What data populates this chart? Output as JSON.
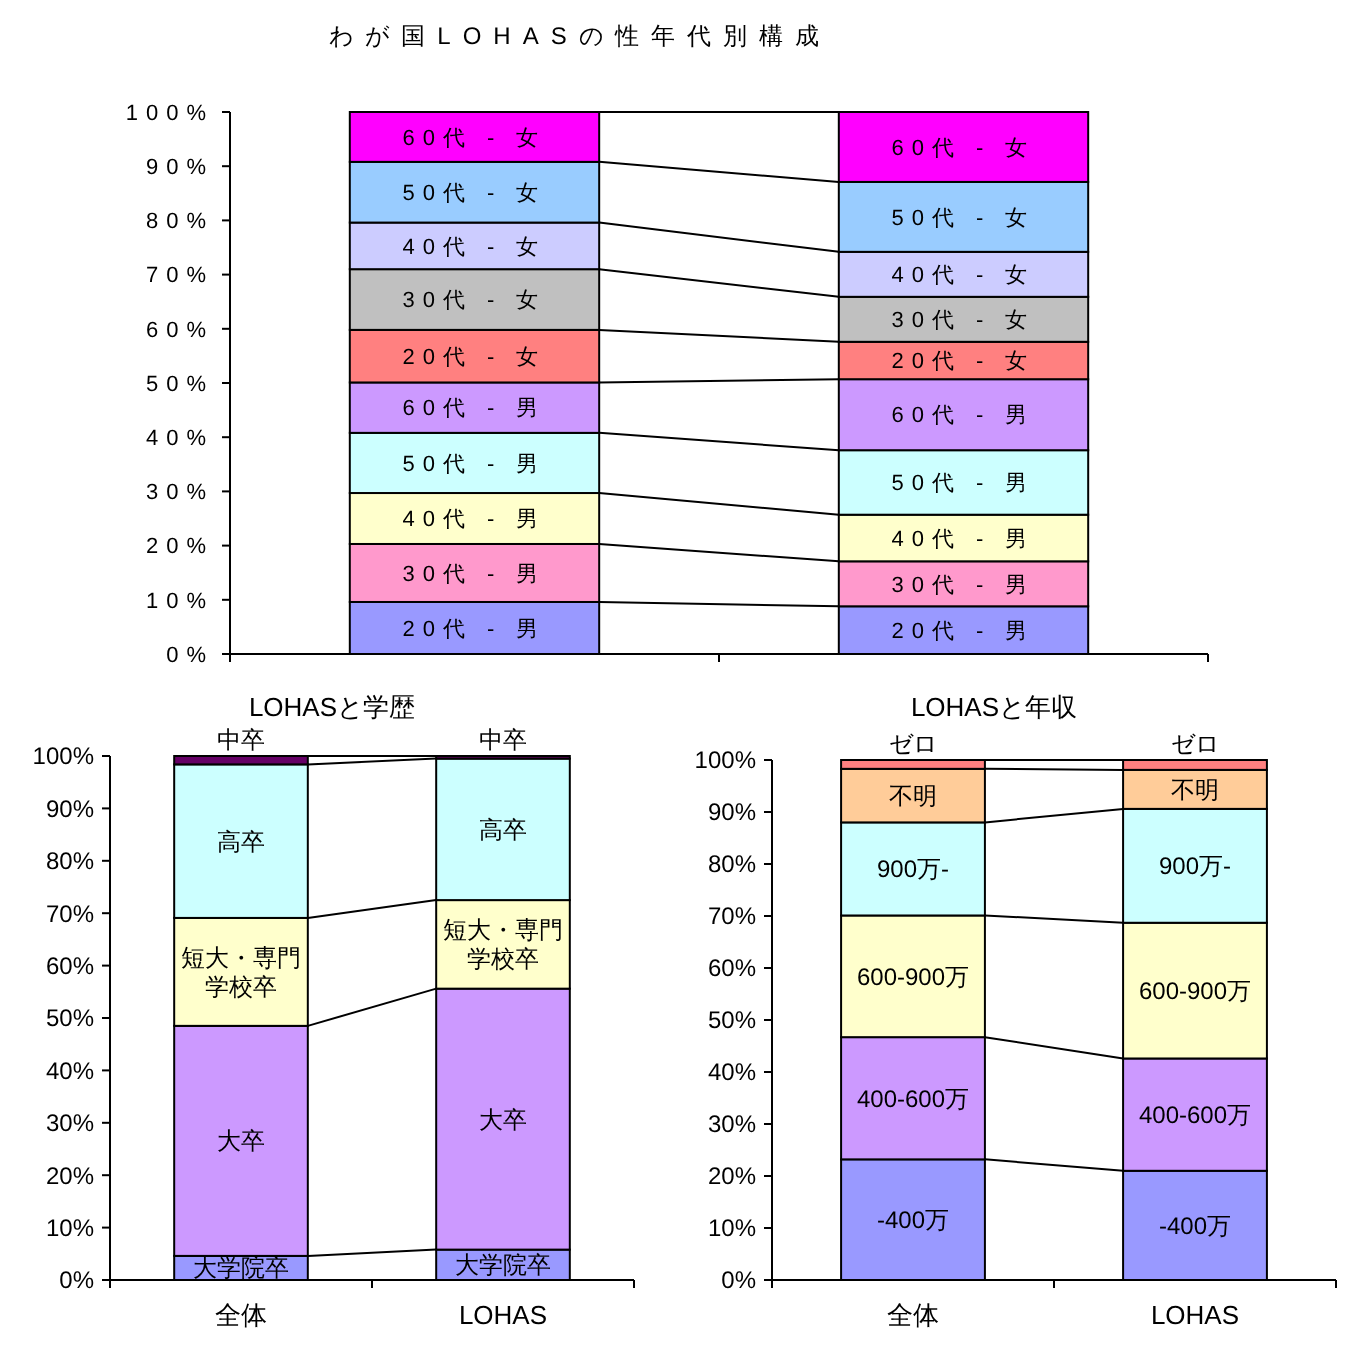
{
  "chart_data": [
    {
      "type": "bar",
      "title": "わが国LOHASの性年代別構成",
      "stacked": true,
      "categories": [
        null,
        null
      ],
      "ylim": [
        0,
        100
      ],
      "yticks": [
        {
          "value": 0,
          "label": "0%"
        },
        {
          "value": 10,
          "label": "10%"
        },
        {
          "value": 20,
          "label": "20%"
        },
        {
          "value": 30,
          "label": "30%"
        },
        {
          "value": 40,
          "label": "40%"
        },
        {
          "value": 50,
          "label": "50%"
        },
        {
          "value": 60,
          "label": "60%"
        },
        {
          "value": 70,
          "label": "70%"
        },
        {
          "value": 80,
          "label": "80%"
        },
        {
          "value": 90,
          "label": "90%"
        },
        {
          "value": 100,
          "label": "100%"
        }
      ],
      "tick_labels": "y",
      "legend": false,
      "grid": false,
      "series": [
        {
          "name": "20代 - 男",
          "color": "#9999ff",
          "values": [
            9.6,
            8.8
          ]
        },
        {
          "name": "30代 - 男",
          "color": "#ff99cc",
          "values": [
            10.7,
            8.3
          ]
        },
        {
          "name": "40代 - 男",
          "color": "#ffffcc",
          "values": [
            9.4,
            8.6
          ]
        },
        {
          "name": "50代 - 男",
          "color": "#ccffff",
          "values": [
            11.1,
            11.9
          ]
        },
        {
          "name": "60代 - 男",
          "color": "#cc99ff",
          "values": [
            9.3,
            13.1
          ]
        },
        {
          "name": "20代 - 女",
          "color": "#ff8080",
          "values": [
            9.7,
            6.9
          ]
        },
        {
          "name": "30代 - 女",
          "color": "#c0c0c0",
          "values": [
            11.2,
            8.3
          ]
        },
        {
          "name": "40代 - 女",
          "color": "#ccccff",
          "values": [
            8.6,
            8.3
          ]
        },
        {
          "name": "50代 - 女",
          "color": "#99ccff",
          "values": [
            11.2,
            12.9
          ]
        },
        {
          "name": "60代 - 女",
          "color": "#ff00ff",
          "values": [
            9.2,
            12.9
          ]
        }
      ]
    },
    {
      "type": "bar",
      "title": "LOHASと学歴",
      "stacked": true,
      "categories": [
        "全体",
        "LOHAS"
      ],
      "ylim": [
        0,
        100
      ],
      "yticks": [
        {
          "value": 0,
          "label": "0%"
        },
        {
          "value": 10,
          "label": "10%"
        },
        {
          "value": 20,
          "label": "20%"
        },
        {
          "value": 30,
          "label": "30%"
        },
        {
          "value": 40,
          "label": "40%"
        },
        {
          "value": 50,
          "label": "50%"
        },
        {
          "value": 60,
          "label": "60%"
        },
        {
          "value": 70,
          "label": "70%"
        },
        {
          "value": 80,
          "label": "80%"
        },
        {
          "value": 90,
          "label": "90%"
        },
        {
          "value": 100,
          "label": "100%"
        }
      ],
      "legend": false,
      "grid": false,
      "series": [
        {
          "name": "大学院卒",
          "color": "#9999ff",
          "values": [
            4.6,
            5.8
          ]
        },
        {
          "name": "大卒",
          "color": "#cc99ff",
          "values": [
            43.9,
            49.8
          ]
        },
        {
          "name": "短大・専門学校卒",
          "color": "#ffffcc",
          "values": [
            20.6,
            16.9
          ]
        },
        {
          "name": "高卒",
          "color": "#ccffff",
          "values": [
            29.3,
            27.0
          ]
        },
        {
          "name": "中卒",
          "color": "#660066",
          "values": [
            1.6,
            0.5
          ]
        }
      ]
    },
    {
      "type": "bar",
      "title": "LOHASと年収",
      "stacked": true,
      "categories": [
        "全体",
        "LOHAS"
      ],
      "ylim": [
        0,
        100
      ],
      "yticks": [
        {
          "value": 0,
          "label": "0%"
        },
        {
          "value": 10,
          "label": "10%"
        },
        {
          "value": 20,
          "label": "20%"
        },
        {
          "value": 30,
          "label": "30%"
        },
        {
          "value": 40,
          "label": "40%"
        },
        {
          "value": 50,
          "label": "50%"
        },
        {
          "value": 60,
          "label": "60%"
        },
        {
          "value": 70,
          "label": "70%"
        },
        {
          "value": 80,
          "label": "80%"
        },
        {
          "value": 90,
          "label": "90%"
        },
        {
          "value": 100,
          "label": "100%"
        }
      ],
      "legend": false,
      "grid": false,
      "series": [
        {
          "name": "-400万",
          "color": "#9999ff",
          "values": [
            23.2,
            21.0
          ]
        },
        {
          "name": "400-600万",
          "color": "#cc99ff",
          "values": [
            23.5,
            21.6
          ]
        },
        {
          "name": "600-900万",
          "color": "#ffffcc",
          "values": [
            23.4,
            26.1
          ]
        },
        {
          "name": "900万-",
          "color": "#ccffff",
          "values": [
            17.9,
            21.9
          ]
        },
        {
          "name": "不明",
          "color": "#ffcc99",
          "values": [
            10.3,
            7.5
          ]
        },
        {
          "name": "ゼロ",
          "color": "#ff8080",
          "values": [
            1.7,
            1.9
          ]
        }
      ]
    }
  ]
}
